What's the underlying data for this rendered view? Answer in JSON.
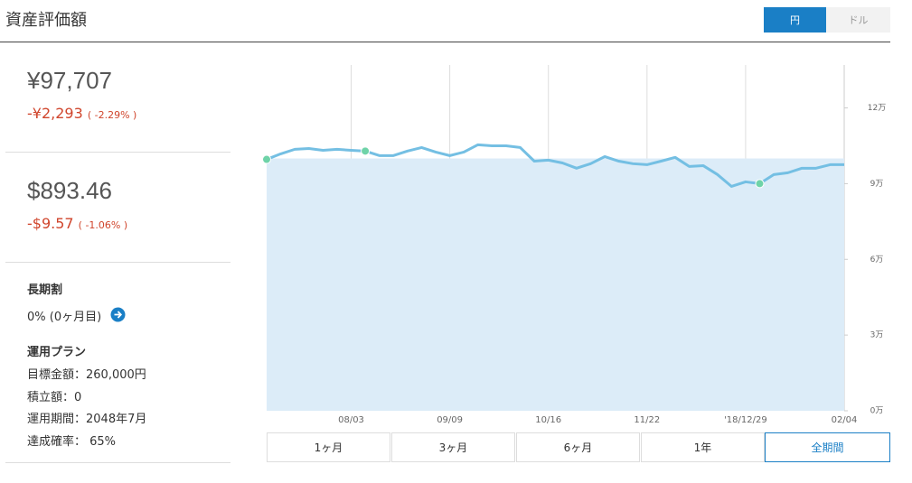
{
  "header": {
    "title": "資産評価額",
    "currency_toggle": [
      "円",
      "ドル"
    ]
  },
  "summary": {
    "yen_value": "¥97,707",
    "yen_change": "-¥2,293",
    "yen_change_pct": "( -2.29% )",
    "usd_value": "$893.46",
    "usd_change": "-$9.57",
    "usd_change_pct": "( -1.06% )"
  },
  "long_term": {
    "title": "長期割",
    "status": "0% (0ヶ月目)"
  },
  "plan": {
    "title": "運用プラン",
    "items": [
      "目標金額：260,000円",
      "積立額：0",
      "運用期間：2048年7月",
      "達成確率： 65%"
    ]
  },
  "range_buttons": [
    "1ヶ月",
    "3ヶ月",
    "6ヶ月",
    "1年",
    "全期間"
  ],
  "chart_data": {
    "type": "line",
    "categories": [
      null,
      null,
      null,
      null,
      null,
      null,
      "08/03",
      null,
      null,
      null,
      null,
      null,
      null,
      "09/09",
      null,
      null,
      null,
      null,
      null,
      null,
      "10/16",
      null,
      null,
      null,
      null,
      null,
      null,
      "11/22",
      null,
      null,
      null,
      null,
      null,
      null,
      "'18/12/29",
      null,
      null,
      null,
      null,
      null,
      null,
      "02/04"
    ],
    "series": [
      {
        "color": "#dcecf8",
        "fill": true,
        "values": [
          10,
          10,
          10,
          10,
          10,
          10,
          10,
          10,
          10,
          10,
          10,
          10,
          10,
          10,
          10,
          10,
          10,
          10,
          10,
          10,
          10,
          10,
          10,
          10,
          10,
          10,
          10,
          10,
          10,
          10,
          10,
          10,
          10,
          10,
          10,
          10,
          10,
          10,
          10,
          10,
          10,
          10
        ]
      },
      {
        "color": "#74bfe3",
        "values": [
          9.96,
          10.18,
          10.36,
          10.39,
          10.32,
          10.36,
          10.32,
          10.29,
          10.11,
          10.11,
          10.29,
          10.43,
          10.25,
          10.11,
          10.25,
          10.54,
          10.5,
          10.5,
          10.43,
          9.89,
          9.93,
          9.82,
          9.61,
          9.79,
          10.07,
          9.89,
          9.79,
          9.75,
          9.89,
          10.04,
          9.68,
          9.71,
          9.36,
          8.89,
          9.07,
          9.0,
          9.36,
          9.43,
          9.61,
          9.61,
          9.75,
          9.75
        ]
      },
      {
        "color": "#6fd3a8",
        "points": true,
        "values": [
          9.96,
          null,
          null,
          null,
          null,
          null,
          null,
          10.29,
          null,
          null,
          null,
          null,
          null,
          null,
          null,
          null,
          null,
          null,
          null,
          null,
          null,
          null,
          null,
          null,
          null,
          null,
          null,
          null,
          null,
          null,
          null,
          null,
          null,
          null,
          null,
          9.0,
          null,
          null,
          null,
          null,
          null,
          null
        ]
      }
    ],
    "ylim": [
      0,
      13.7
    ],
    "yticks": [
      {
        "value": 0,
        "label": "0万"
      },
      {
        "value": 3,
        "label": "3万"
      },
      {
        "value": 6,
        "label": "6万"
      },
      {
        "value": 9,
        "label": "9万"
      },
      {
        "value": 12,
        "label": "12万"
      }
    ]
  }
}
